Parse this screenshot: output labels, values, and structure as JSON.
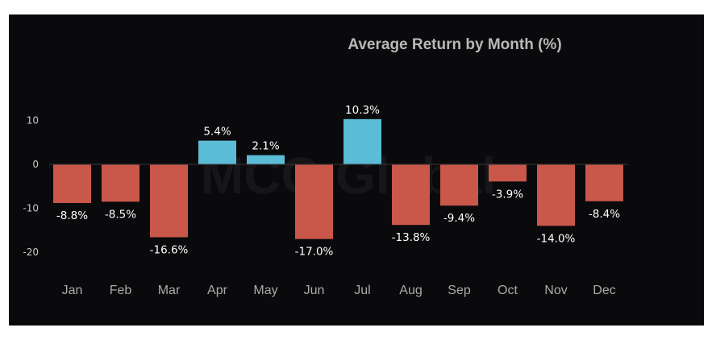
{
  "chart_data": {
    "type": "bar",
    "title": "Average Return by Month (%)",
    "categories": [
      "Jan",
      "Feb",
      "Mar",
      "Apr",
      "May",
      "Jun",
      "Jul",
      "Aug",
      "Sep",
      "Oct",
      "Nov",
      "Dec"
    ],
    "values": [
      -8.8,
      -8.5,
      -16.6,
      5.4,
      2.1,
      -17.0,
      10.3,
      -13.8,
      -9.4,
      -3.9,
      -14.0,
      -8.4
    ],
    "data_labels": [
      "-8.8%",
      "-8.5%",
      "-16.6%",
      "5.4%",
      "2.1%",
      "-17.0%",
      "10.3%",
      "-13.8%",
      "-9.4%",
      "-3.9%",
      "-14.0%",
      "-8.4%"
    ],
    "yticks": [
      10,
      0,
      -10,
      -20
    ],
    "ylim": [
      -26,
      20
    ],
    "grid": false,
    "colors": {
      "positive": "#5bbcd6",
      "negative": "#c9574a"
    },
    "watermark": "MCO Global"
  }
}
